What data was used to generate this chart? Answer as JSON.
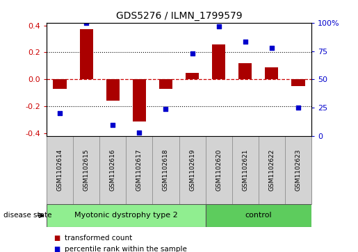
{
  "title": "GDS5276 / ILMN_1799579",
  "samples": [
    "GSM1102614",
    "GSM1102615",
    "GSM1102616",
    "GSM1102617",
    "GSM1102618",
    "GSM1102619",
    "GSM1102620",
    "GSM1102621",
    "GSM1102622",
    "GSM1102623"
  ],
  "transformed_count": [
    -0.07,
    0.37,
    -0.16,
    -0.31,
    -0.07,
    0.05,
    0.26,
    0.12,
    0.09,
    -0.05
  ],
  "percentile_rank": [
    20,
    100,
    10,
    3,
    24,
    73,
    97,
    83,
    78,
    25
  ],
  "bar_color": "#aa0000",
  "dot_color": "#0000cc",
  "ylim_left": [
    -0.42,
    0.42
  ],
  "ylim_right": [
    0,
    105
  ],
  "yticks_left": [
    -0.4,
    -0.2,
    0.0,
    0.2,
    0.4
  ],
  "yticks_right": [
    0,
    25,
    50,
    75,
    100
  ],
  "ytick_labels_right": [
    "0",
    "25",
    "50",
    "75",
    "100%"
  ],
  "disease_groups": [
    {
      "label": "Myotonic dystrophy type 2",
      "indices": [
        0,
        1,
        2,
        3,
        4,
        5
      ],
      "color": "#90ee90"
    },
    {
      "label": "control",
      "indices": [
        6,
        7,
        8,
        9
      ],
      "color": "#5dcc5d"
    }
  ],
  "disease_state_label": "disease state",
  "legend_items": [
    {
      "label": "transformed count",
      "color": "#aa0000"
    },
    {
      "label": "percentile rank within the sample",
      "color": "#0000cc"
    }
  ],
  "grid_dotted_values": [
    -0.2,
    0.2
  ],
  "zero_dashed_color": "#cc0000",
  "label_box_color": "#d3d3d3"
}
